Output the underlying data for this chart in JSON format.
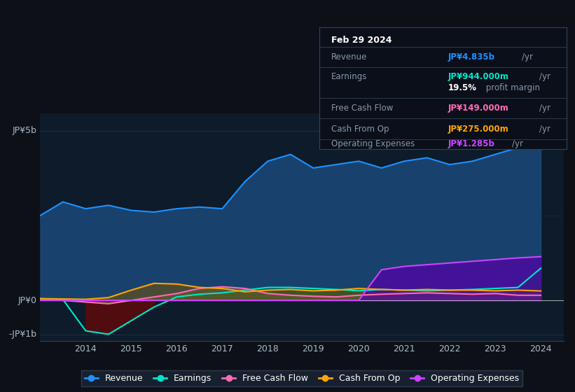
{
  "bg_color": "#0d1117",
  "plot_bg_color": "#0d1b2a",
  "title": "Feb 29 2024",
  "ylabel_top": "JP¥5b",
  "ylabel_zero": "JP¥0",
  "ylabel_neg": "-JP¥1b",
  "xlim": [
    2013.0,
    2024.5
  ],
  "ylim": [
    -1200000000.0,
    5500000000.0
  ],
  "xticks": [
    2014,
    2015,
    2016,
    2017,
    2018,
    2019,
    2020,
    2021,
    2022,
    2023,
    2024
  ],
  "colors": {
    "revenue": "#1e90ff",
    "earnings": "#00e5cc",
    "free_cash_flow": "#ff69b4",
    "cash_from_op": "#ffa500",
    "operating_expenses": "#cc44ff"
  },
  "legend": [
    {
      "label": "Revenue",
      "color": "#1e90ff"
    },
    {
      "label": "Earnings",
      "color": "#00e5cc"
    },
    {
      "label": "Free Cash Flow",
      "color": "#ff69b4"
    },
    {
      "label": "Cash From Op",
      "color": "#ffa500"
    },
    {
      "label": "Operating Expenses",
      "color": "#cc44ff"
    }
  ],
  "revenue": [
    2500000000.0,
    2900000000.0,
    2700000000.0,
    2800000000.0,
    2650000000.0,
    2600000000.0,
    2700000000.0,
    2750000000.0,
    2700000000.0,
    3500000000.0,
    4100000000.0,
    4300000000.0,
    3900000000.0,
    4000000000.0,
    4100000000.0,
    3900000000.0,
    4100000000.0,
    4200000000.0,
    4000000000.0,
    4100000000.0,
    4300000000.0,
    4500000000.0,
    4835000000.0
  ],
  "earnings": [
    50000000.0,
    20000000.0,
    -900000000.0,
    -1000000000.0,
    -600000000.0,
    -200000000.0,
    100000000.0,
    180000000.0,
    220000000.0,
    300000000.0,
    380000000.0,
    380000000.0,
    350000000.0,
    320000000.0,
    280000000.0,
    320000000.0,
    300000000.0,
    280000000.0,
    300000000.0,
    320000000.0,
    350000000.0,
    380000000.0,
    944000000.0
  ],
  "free_cash_flow": [
    20000000.0,
    0.0,
    -50000000.0,
    -100000000.0,
    0.0,
    100000000.0,
    200000000.0,
    350000000.0,
    400000000.0,
    350000000.0,
    200000000.0,
    150000000.0,
    120000000.0,
    100000000.0,
    150000000.0,
    180000000.0,
    200000000.0,
    220000000.0,
    200000000.0,
    180000000.0,
    200000000.0,
    150000000.0,
    149000000.0
  ],
  "cash_from_op": [
    50000000.0,
    40000000.0,
    30000000.0,
    80000000.0,
    300000000.0,
    500000000.0,
    480000000.0,
    380000000.0,
    350000000.0,
    250000000.0,
    300000000.0,
    320000000.0,
    280000000.0,
    300000000.0,
    350000000.0,
    320000000.0,
    300000000.0,
    320000000.0,
    300000000.0,
    300000000.0,
    280000000.0,
    300000000.0,
    275000000.0
  ],
  "operating_expenses": [
    0.0,
    0.0,
    0.0,
    0.0,
    0.0,
    0.0,
    0.0,
    0.0,
    0.0,
    0.0,
    0.0,
    0.0,
    0.0,
    0.0,
    0.0,
    900000000.0,
    1000000000.0,
    1050000000.0,
    1100000000.0,
    1150000000.0,
    1200000000.0,
    1250000000.0,
    1285000000.0
  ],
  "x_years": [
    2013.0,
    2013.5,
    2014.0,
    2014.5,
    2015.0,
    2015.5,
    2016.0,
    2016.5,
    2017.0,
    2017.5,
    2018.0,
    2018.5,
    2019.0,
    2019.5,
    2020.0,
    2020.5,
    2021.0,
    2021.5,
    2022.0,
    2022.5,
    2023.0,
    2023.5,
    2024.0
  ]
}
